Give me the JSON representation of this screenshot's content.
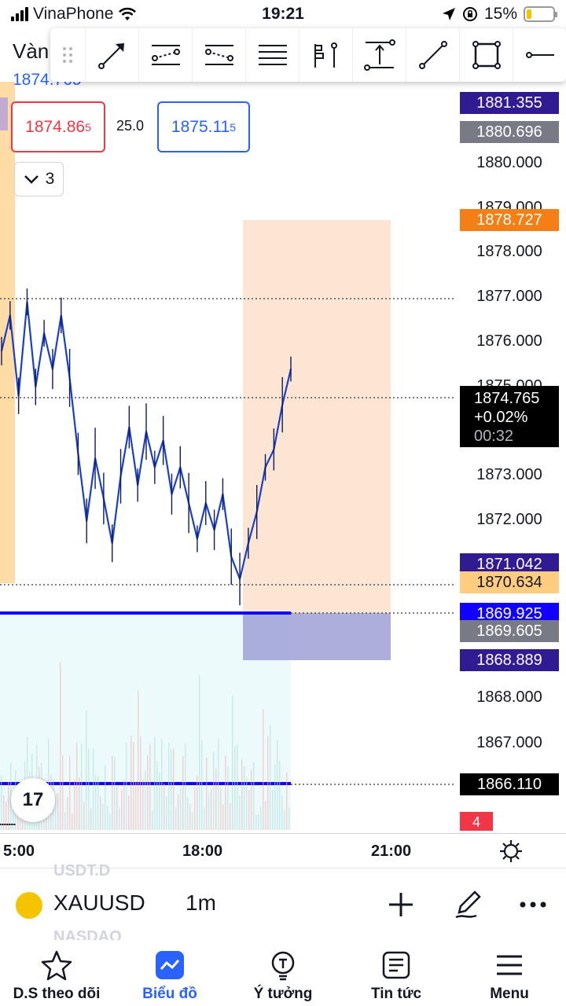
{
  "status_bar": {
    "carrier": "VinaPhone",
    "time": "19:21",
    "battery": "15%"
  },
  "header": {
    "symbol_title": "Vàn",
    "price": "1874.765"
  },
  "quote": {
    "bid_main": "1874.86",
    "bid_sup": "5",
    "spread": "25.0",
    "ask_main": "1875.11",
    "ask_sup": "5"
  },
  "collapse": {
    "count": "3"
  },
  "price_axis": {
    "ticks": [
      "1880.000",
      "1879.000",
      "1878.000",
      "1877.000",
      "1876.000",
      "1875.000",
      "1873.000",
      "1872.000",
      "1868.000",
      "1867.000"
    ],
    "labels": [
      {
        "text": "1881.355",
        "color": "#311b92"
      },
      {
        "text": "1880.696",
        "color": "#787b86"
      },
      {
        "text": "1878.727",
        "color": "#f57f17"
      },
      {
        "text": "1871.042",
        "color": "#311b92"
      },
      {
        "text": "1870.634",
        "color": "#ffcc80"
      },
      {
        "text": "1869.925",
        "color": "#1100ff"
      },
      {
        "text": "1869.605",
        "color": "#787b86"
      },
      {
        "text": "1868.889",
        "color": "#311b92"
      },
      {
        "text": "1866.110",
        "color": "#000000"
      }
    ],
    "last_price": "1874.765",
    "change": "+0.02%",
    "countdown": "00:32",
    "badge": "4"
  },
  "time_axis": [
    "5:00",
    "18:00",
    "21:00"
  ],
  "symbol_bar": {
    "ghost_top": "USDT.D",
    "ghost_bottom": "NASDAQ",
    "symbol": "XAUUSD",
    "interval": "1m"
  },
  "nav": [
    {
      "label": "D.S theo dõi",
      "icon": "star-icon"
    },
    {
      "label": "Biểu đồ",
      "icon": "chart-icon"
    },
    {
      "label": "Ý tưởng",
      "icon": "bulb-icon"
    },
    {
      "label": "Tin tức",
      "icon": "news-icon"
    },
    {
      "label": "Menu",
      "icon": "menu-icon"
    }
  ],
  "tv_logo": "17",
  "chart_data": {
    "type": "line",
    "title": "",
    "xlabel": "",
    "ylabel": "",
    "ylim": [
      1865.5,
      1881.5
    ],
    "x_ticks": [
      "5:00",
      "18:00",
      "21:00"
    ],
    "series": [
      {
        "values": [
          1875.8,
          1876.6,
          1874.8,
          1876.9,
          1875.0,
          1876.2,
          1875.4,
          1876.6,
          1875.2,
          1873.5,
          1872.0,
          1873.4,
          1872.5,
          1871.5,
          1873.0,
          1874.1,
          1872.8,
          1874.0,
          1873.2,
          1873.8,
          1872.6,
          1873.2,
          1872.4,
          1871.6,
          1872.4,
          1871.8,
          1872.6,
          1871.2,
          1870.7,
          1871.5,
          1872.2,
          1873.2,
          1873.6,
          1874.6,
          1875.4
        ]
      }
    ]
  }
}
